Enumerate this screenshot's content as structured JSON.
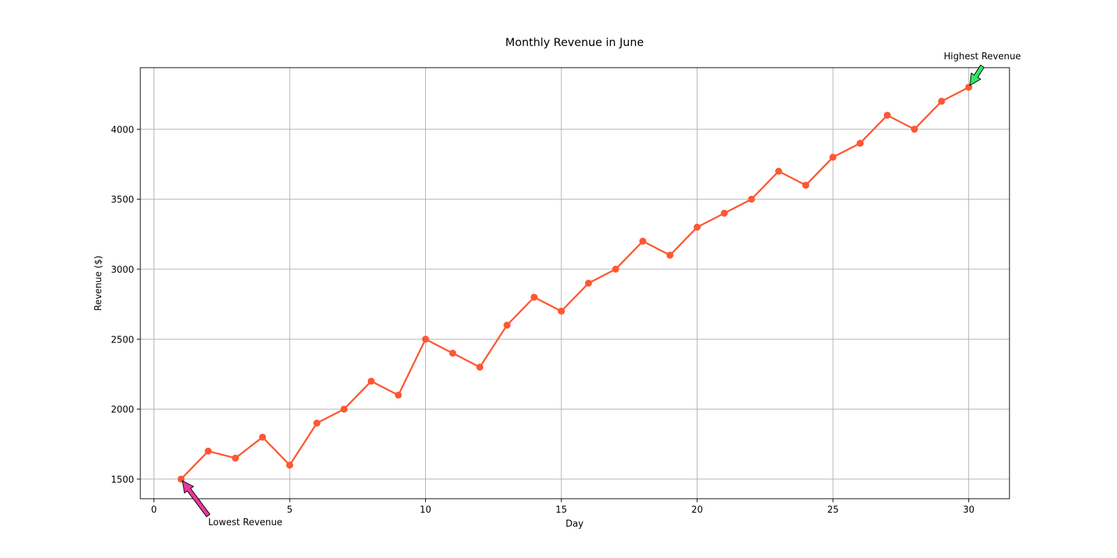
{
  "chart_data": {
    "type": "line",
    "title": "Monthly Revenue in June",
    "xlabel": "Day",
    "ylabel": "Revenue ($)",
    "xlim": [
      -0.5,
      31.5
    ],
    "ylim": [
      1360,
      4440
    ],
    "xticks": [
      0,
      5,
      10,
      15,
      20,
      25,
      30
    ],
    "yticks": [
      1500,
      2000,
      2500,
      3000,
      3500,
      4000
    ],
    "grid": true,
    "colors": {
      "line": "#ff5733",
      "low_arrow": "#e8399c",
      "high_arrow": "#2ee860"
    },
    "series": [
      {
        "x": [
          1,
          2,
          3,
          4,
          5,
          6,
          7,
          8,
          9,
          10,
          11,
          12,
          13,
          14,
          15,
          16,
          17,
          18,
          19,
          20,
          21,
          22,
          23,
          24,
          25,
          26,
          27,
          28,
          29,
          30
        ],
        "values": [
          1500,
          1700,
          1650,
          1800,
          1600,
          1900,
          2000,
          2200,
          2100,
          2500,
          2400,
          2300,
          2600,
          2800,
          2700,
          2900,
          3000,
          3200,
          3100,
          3300,
          3400,
          3500,
          3700,
          3600,
          3800,
          3900,
          4100,
          4000,
          4200,
          4300
        ]
      }
    ],
    "annotations": [
      {
        "text": "Lowest Revenue",
        "x": 1,
        "y": 1500,
        "text_x": 2,
        "text_y": 1200,
        "arrow": "low_arrow"
      },
      {
        "text": "Highest Revenue",
        "x": 30,
        "y": 4300,
        "text_x": 30.5,
        "text_y": 4500,
        "arrow": "high_arrow"
      }
    ]
  }
}
